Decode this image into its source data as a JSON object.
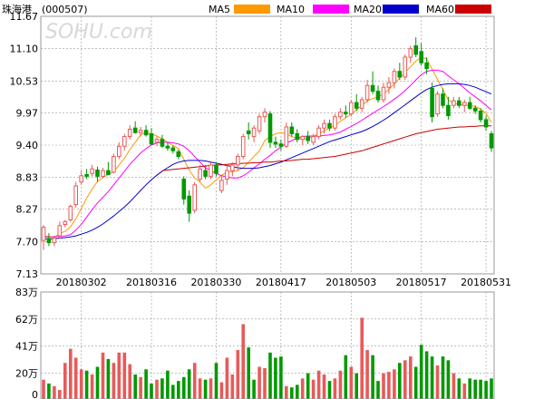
{
  "header": {
    "stock_name": "珠海港",
    "stock_code": "(000507)",
    "watermark": "SOHU.com",
    "legend": [
      {
        "label": "MA5",
        "color": "#ff9900"
      },
      {
        "label": "MA10",
        "color": "#ff00ff"
      },
      {
        "label": "MA20",
        "color": "#0000cc"
      },
      {
        "label": "MA60",
        "color": "#cc0000"
      }
    ]
  },
  "colors": {
    "up": "#e85a5a",
    "down": "#009900",
    "grid": "#999999",
    "frame": "#999999"
  },
  "chart_data": [
    {
      "type": "candlestick",
      "title": "珠海港 (000507)",
      "y_ticks": [
        "11.67",
        "11.10",
        "10.53",
        "9.97",
        "9.40",
        "8.83",
        "8.27",
        "7.70",
        "7.13"
      ],
      "ylim": [
        7.13,
        11.67
      ],
      "x_ticks": [
        "20180302",
        "20180316",
        "20180330",
        "20180417",
        "20180503",
        "20180517",
        "20180531"
      ],
      "x_tick_index": [
        7,
        20,
        32,
        44,
        57,
        70,
        82
      ],
      "candles": [
        [
          7.72,
          7.99,
          7.55,
          7.95
        ],
        [
          7.75,
          7.85,
          7.62,
          7.68
        ],
        [
          7.68,
          7.8,
          7.62,
          7.76
        ],
        [
          7.8,
          8.05,
          7.75,
          7.98
        ],
        [
          8.0,
          8.08,
          7.95,
          8.05
        ],
        [
          8.08,
          8.35,
          8.05,
          8.32
        ],
        [
          8.35,
          8.75,
          8.3,
          8.68
        ],
        [
          8.75,
          8.95,
          8.7,
          8.86
        ],
        [
          8.88,
          8.98,
          8.8,
          8.85
        ],
        [
          8.9,
          9.05,
          8.85,
          8.98
        ],
        [
          8.96,
          9.02,
          8.75,
          8.85
        ],
        [
          8.85,
          9.0,
          8.82,
          8.95
        ],
        [
          8.95,
          9.1,
          8.88,
          8.88
        ],
        [
          8.92,
          9.25,
          8.9,
          9.2
        ],
        [
          9.2,
          9.45,
          9.15,
          9.38
        ],
        [
          9.38,
          9.6,
          9.3,
          9.55
        ],
        [
          9.55,
          9.75,
          9.5,
          9.68
        ],
        [
          9.7,
          9.82,
          9.6,
          9.62
        ],
        [
          9.62,
          9.72,
          9.55,
          9.66
        ],
        [
          9.66,
          9.75,
          9.55,
          9.58
        ],
        [
          9.6,
          9.7,
          9.4,
          9.42
        ],
        [
          9.45,
          9.55,
          9.38,
          9.5
        ],
        [
          9.5,
          9.58,
          9.35,
          9.38
        ],
        [
          9.38,
          9.45,
          9.3,
          9.35
        ],
        [
          9.35,
          9.4,
          9.25,
          9.3
        ],
        [
          9.28,
          9.32,
          9.15,
          9.2
        ],
        [
          8.8,
          8.85,
          8.35,
          8.45
        ],
        [
          8.5,
          8.6,
          8.05,
          8.2
        ],
        [
          8.25,
          8.75,
          8.2,
          8.7
        ],
        [
          8.8,
          9.05,
          8.75,
          8.98
        ],
        [
          8.95,
          9.05,
          8.8,
          8.85
        ],
        [
          8.85,
          9.1,
          8.8,
          9.05
        ],
        [
          9.05,
          9.1,
          8.85,
          8.9
        ],
        [
          8.6,
          8.85,
          8.55,
          8.78
        ],
        [
          8.8,
          9.05,
          8.7,
          8.95
        ],
        [
          8.95,
          9.1,
          8.85,
          9.05
        ],
        [
          9.05,
          9.25,
          8.95,
          9.2
        ],
        [
          9.2,
          9.6,
          9.15,
          9.55
        ],
        [
          9.65,
          9.8,
          9.5,
          9.6
        ],
        [
          9.55,
          9.75,
          9.45,
          9.7
        ],
        [
          9.65,
          9.95,
          9.6,
          9.9
        ],
        [
          9.9,
          10.05,
          9.8,
          9.98
        ],
        [
          9.95,
          10.0,
          9.35,
          9.45
        ],
        [
          9.45,
          9.55,
          9.35,
          9.42
        ],
        [
          9.42,
          9.5,
          9.3,
          9.38
        ],
        [
          9.38,
          9.8,
          9.35,
          9.72
        ],
        [
          9.72,
          9.8,
          9.55,
          9.6
        ],
        [
          9.6,
          9.68,
          9.45,
          9.5
        ],
        [
          9.5,
          9.58,
          9.4,
          9.55
        ],
        [
          9.55,
          9.65,
          9.42,
          9.48
        ],
        [
          9.45,
          9.6,
          9.4,
          9.55
        ],
        [
          9.55,
          9.75,
          9.5,
          9.7
        ],
        [
          9.7,
          9.85,
          9.6,
          9.78
        ],
        [
          9.78,
          9.85,
          9.65,
          9.7
        ],
        [
          9.7,
          9.95,
          9.65,
          9.9
        ],
        [
          9.9,
          10.05,
          9.85,
          9.98
        ],
        [
          9.98,
          10.1,
          9.88,
          9.95
        ],
        [
          9.95,
          10.2,
          9.9,
          10.15
        ],
        [
          10.15,
          10.3,
          10.0,
          10.05
        ],
        [
          10.05,
          10.25,
          9.98,
          10.2
        ],
        [
          10.2,
          10.55,
          10.15,
          10.45
        ],
        [
          10.45,
          10.7,
          10.3,
          10.35
        ],
        [
          10.35,
          10.45,
          10.15,
          10.2
        ],
        [
          10.2,
          10.5,
          10.15,
          10.42
        ],
        [
          10.42,
          10.6,
          10.3,
          10.5
        ],
        [
          10.5,
          10.75,
          10.4,
          10.7
        ],
        [
          10.7,
          10.85,
          10.55,
          10.6
        ],
        [
          10.6,
          11.0,
          10.55,
          10.95
        ],
        [
          10.95,
          11.15,
          10.85,
          11.1
        ],
        [
          11.15,
          11.3,
          10.95,
          11.0
        ],
        [
          11.05,
          11.2,
          10.8,
          10.85
        ],
        [
          10.85,
          10.95,
          10.65,
          10.75
        ],
        [
          10.4,
          10.5,
          9.8,
          9.9
        ],
        [
          9.95,
          10.35,
          9.9,
          10.3
        ],
        [
          10.3,
          10.4,
          10.05,
          10.1
        ],
        [
          10.1,
          10.25,
          9.85,
          9.92
        ],
        [
          10.1,
          10.25,
          10.05,
          10.18
        ],
        [
          10.18,
          10.25,
          10.05,
          10.1
        ],
        [
          10.1,
          10.2,
          9.98,
          10.15
        ],
        [
          10.15,
          10.25,
          10.02,
          10.05
        ],
        [
          10.05,
          10.1,
          9.95,
          10.0
        ],
        [
          10.0,
          10.05,
          9.8,
          9.85
        ],
        [
          9.85,
          9.92,
          9.65,
          9.72
        ],
        [
          9.6,
          9.65,
          9.28,
          9.35
        ]
      ],
      "ma5": [
        7.8,
        7.79,
        7.78,
        7.84,
        7.88,
        7.96,
        8.1,
        8.28,
        8.47,
        8.62,
        8.76,
        8.83,
        8.88,
        8.93,
        9.05,
        9.17,
        9.32,
        9.45,
        9.58,
        9.62,
        9.6,
        9.56,
        9.51,
        9.45,
        9.39,
        9.34,
        9.15,
        8.96,
        8.82,
        8.75,
        8.64,
        8.7,
        8.79,
        8.87,
        8.92,
        8.93,
        8.95,
        9.0,
        9.1,
        9.2,
        9.3,
        9.48,
        9.55,
        9.6,
        9.62,
        9.6,
        9.55,
        9.52,
        9.5,
        9.52,
        9.55,
        9.6,
        9.65,
        9.7,
        9.75,
        9.82,
        9.88,
        9.95,
        10.02,
        10.1,
        10.18,
        10.22,
        10.25,
        10.3,
        10.38,
        10.48,
        10.58,
        10.68,
        10.78,
        10.88,
        10.95,
        10.92,
        10.74,
        10.56,
        10.38,
        10.2,
        10.13,
        10.12,
        10.1,
        10.1,
        10.08,
        10.04,
        9.96,
        9.8
      ],
      "ma10": [
        7.78,
        7.78,
        7.78,
        7.79,
        7.8,
        7.82,
        7.9,
        8.0,
        8.13,
        8.26,
        8.38,
        8.48,
        8.58,
        8.7,
        8.82,
        8.94,
        9.06,
        9.16,
        9.26,
        9.34,
        9.4,
        9.44,
        9.45,
        9.45,
        9.44,
        9.42,
        9.38,
        9.3,
        9.2,
        9.1,
        9.0,
        8.95,
        8.9,
        8.86,
        8.84,
        8.82,
        8.82,
        8.86,
        8.92,
        9.0,
        9.07,
        9.15,
        9.22,
        9.3,
        9.37,
        9.43,
        9.48,
        9.52,
        9.55,
        9.56,
        9.56,
        9.56,
        9.57,
        9.58,
        9.6,
        9.63,
        9.68,
        9.73,
        9.78,
        9.84,
        9.9,
        9.96,
        10.02,
        10.08,
        10.14,
        10.21,
        10.28,
        10.36,
        10.45,
        10.55,
        10.64,
        10.7,
        10.72,
        10.72,
        10.7,
        10.62,
        10.55,
        10.48,
        10.4,
        10.32,
        10.25,
        10.18,
        10.1,
        10.02
      ],
      "ma20": [
        7.75,
        7.75,
        7.75,
        7.76,
        7.77,
        7.78,
        7.8,
        7.83,
        7.86,
        7.9,
        7.95,
        8.01,
        8.08,
        8.15,
        8.23,
        8.31,
        8.4,
        8.5,
        8.6,
        8.7,
        8.79,
        8.87,
        8.94,
        9.0,
        9.06,
        9.1,
        9.12,
        9.13,
        9.13,
        9.13,
        9.12,
        9.1,
        9.08,
        9.06,
        9.04,
        9.02,
        9.0,
        8.99,
        8.99,
        8.99,
        9.0,
        9.02,
        9.04,
        9.07,
        9.1,
        9.14,
        9.18,
        9.22,
        9.26,
        9.3,
        9.34,
        9.38,
        9.42,
        9.46,
        9.49,
        9.52,
        9.55,
        9.58,
        9.61,
        9.64,
        9.68,
        9.73,
        9.78,
        9.84,
        9.9,
        9.97,
        10.04,
        10.11,
        10.18,
        10.25,
        10.32,
        10.38,
        10.42,
        10.45,
        10.47,
        10.48,
        10.48,
        10.48,
        10.47,
        10.45,
        10.42,
        10.38,
        10.34,
        10.3
      ],
      "ma60": [
        null,
        null,
        null,
        null,
        null,
        null,
        null,
        null,
        null,
        null,
        null,
        null,
        null,
        null,
        null,
        null,
        null,
        null,
        null,
        null,
        null,
        null,
        8.95,
        8.96,
        8.97,
        8.98,
        8.99,
        9.0,
        9.01,
        9.02,
        9.03,
        9.04,
        9.05,
        9.05,
        9.06,
        9.07,
        9.07,
        9.08,
        9.08,
        9.09,
        9.09,
        9.1,
        9.1,
        9.11,
        9.12,
        9.12,
        9.13,
        9.14,
        9.15,
        9.15,
        9.16,
        9.17,
        9.18,
        9.19,
        9.2,
        9.22,
        9.24,
        9.26,
        9.28,
        9.3,
        9.33,
        9.36,
        9.39,
        9.42,
        9.45,
        9.48,
        9.51,
        9.54,
        9.57,
        9.6,
        9.62,
        9.64,
        9.66,
        9.68,
        9.69,
        9.7,
        9.71,
        9.72,
        9.72,
        9.73,
        9.73,
        9.74,
        9.74,
        9.74
      ]
    },
    {
      "type": "bar",
      "title": "volume",
      "y_ticks": [
        "83万",
        "62万",
        "41万",
        "20万",
        "0"
      ],
      "ylim": [
        0,
        83
      ],
      "volumes": [
        15,
        12,
        10,
        7,
        28,
        39,
        32,
        23,
        22,
        19,
        25,
        36,
        31,
        28,
        36,
        36,
        27,
        19,
        17,
        23,
        12,
        15,
        16,
        22,
        11,
        14,
        17,
        23,
        28,
        16,
        15,
        16,
        28,
        13,
        32,
        19,
        38,
        58,
        40,
        15,
        25,
        24,
        36,
        32,
        33,
        10,
        9,
        11,
        16,
        20,
        15,
        22,
        19,
        14,
        16,
        22,
        34,
        25,
        20,
        63,
        38,
        34,
        14,
        20,
        21,
        23,
        28,
        30,
        33,
        25,
        42,
        37,
        33,
        26,
        33,
        30,
        20,
        16,
        12,
        16,
        15,
        15,
        14,
        16
      ],
      "volume_up": [
        true,
        false,
        true,
        true,
        true,
        true,
        true,
        true,
        false,
        true,
        false,
        true,
        false,
        true,
        true,
        true,
        true,
        false,
        true,
        false,
        false,
        true,
        false,
        false,
        false,
        false,
        false,
        false,
        true,
        true,
        false,
        true,
        false,
        true,
        true,
        true,
        true,
        true,
        false,
        false,
        true,
        true,
        false,
        false,
        false,
        true,
        false,
        false,
        true,
        false,
        true,
        true,
        true,
        false,
        true,
        true,
        false,
        true,
        false,
        true,
        true,
        false,
        false,
        true,
        true,
        true,
        false,
        true,
        true,
        false,
        false,
        false,
        false,
        true,
        false,
        false,
        true,
        false,
        true,
        false,
        false,
        false,
        false,
        false
      ]
    }
  ]
}
